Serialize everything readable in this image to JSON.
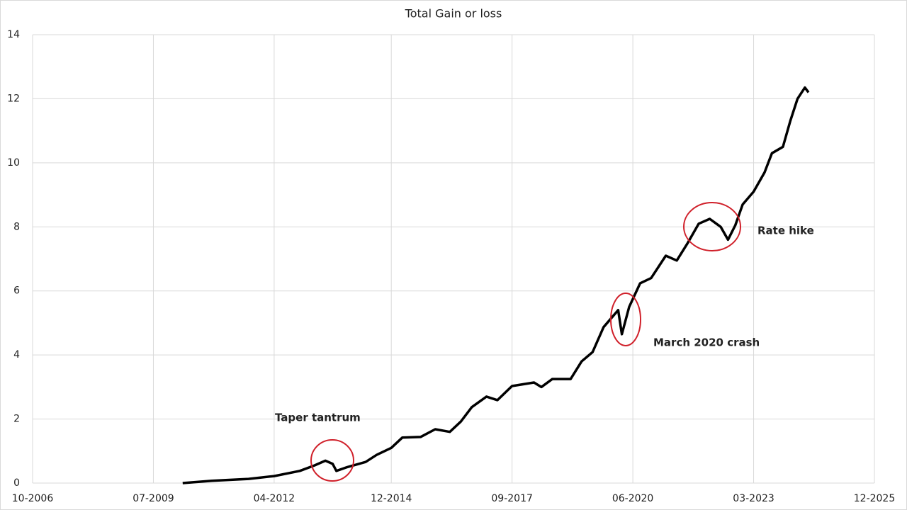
{
  "chart_data": {
    "type": "line",
    "title": "Total Gain or loss",
    "x": [
      "2010-03",
      "2010-11",
      "2011-09",
      "2012-04",
      "2012-11",
      "2013-03",
      "2013-06",
      "2013-08",
      "2013-09",
      "2013-12",
      "2014-05",
      "2014-08",
      "2014-12",
      "2015-03",
      "2015-08",
      "2015-12",
      "2016-04",
      "2016-07",
      "2016-10",
      "2017-02",
      "2017-05",
      "2017-09",
      "2018-03",
      "2018-05",
      "2018-08",
      "2019-01",
      "2019-04",
      "2019-07",
      "2019-10",
      "2020-02",
      "2020-03",
      "2020-05",
      "2020-08",
      "2020-11",
      "2021-03",
      "2021-06",
      "2021-09",
      "2021-12",
      "2022-03",
      "2022-06",
      "2022-08",
      "2022-10",
      "2022-12",
      "2023-03",
      "2023-06",
      "2023-08",
      "2023-11",
      "2024-01",
      "2024-03",
      "2024-05",
      "2024-06"
    ],
    "values": [
      0,
      0.07,
      0.13,
      0.22,
      0.38,
      0.55,
      0.7,
      0.6,
      0.38,
      0.5,
      0.66,
      0.88,
      1.1,
      1.42,
      1.44,
      1.68,
      1.6,
      1.92,
      2.37,
      2.7,
      2.59,
      3.03,
      3.14,
      3.0,
      3.25,
      3.25,
      3.8,
      4.09,
      4.87,
      5.4,
      4.65,
      5.5,
      6.24,
      6.4,
      7.1,
      6.95,
      7.5,
      8.1,
      8.25,
      8.0,
      7.6,
      8.05,
      8.7,
      9.1,
      9.7,
      10.3,
      10.5,
      11.3,
      12.0,
      12.35,
      12.2
    ],
    "color": "#000000",
    "xlim": [
      "2006-10",
      "2025-12"
    ],
    "xticks": [
      {
        "value": "2006-10",
        "label": "10-2006"
      },
      {
        "value": "2009-07",
        "label": "07-2009"
      },
      {
        "value": "2012-04",
        "label": "04-2012"
      },
      {
        "value": "2014-12",
        "label": "12-2014"
      },
      {
        "value": "2017-09",
        "label": "09-2017"
      },
      {
        "value": "2020-06",
        "label": "06-2020"
      },
      {
        "value": "2023-03",
        "label": "03-2023"
      },
      {
        "value": "2025-12",
        "label": "12-2025"
      }
    ],
    "ylim": [
      0,
      14
    ],
    "yticks": [
      0,
      2,
      4,
      6,
      8,
      10,
      12,
      14
    ],
    "grid": true,
    "annotations": [
      "Taper tantrum",
      "March 2020 crash",
      "Rate hike"
    ],
    "annotation_color": "#d0202a"
  }
}
